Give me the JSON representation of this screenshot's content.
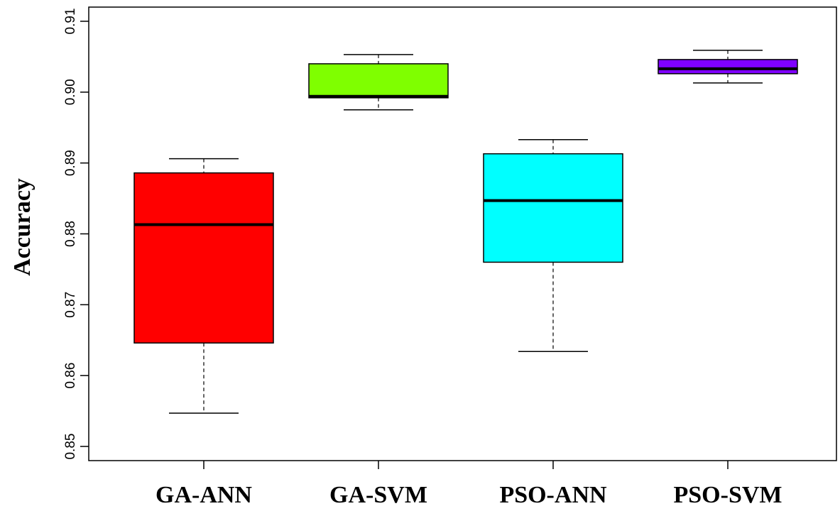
{
  "chart_data": {
    "type": "boxplot",
    "title": "",
    "xlabel": "",
    "ylabel": "Accuracy",
    "ylim": [
      0.848,
      0.912
    ],
    "yticks": [
      "0.85",
      "0.86",
      "0.87",
      "0.88",
      "0.89",
      "0.90",
      "0.91"
    ],
    "grid": false,
    "categories": [
      "GA-ANN",
      "GA-SVM",
      "PSO-ANN",
      "PSO-SVM"
    ],
    "boxes": [
      {
        "category": "GA-ANN",
        "min": 0.8547,
        "q1": 0.8646,
        "median": 0.8813,
        "q3": 0.8886,
        "max": 0.8906,
        "color": "#ff0000"
      },
      {
        "category": "GA-SVM",
        "min": 0.8975,
        "q1": 0.8992,
        "median": 0.8994,
        "q3": 0.904,
        "max": 0.9053,
        "color": "#7fff00"
      },
      {
        "category": "PSO-ANN",
        "min": 0.8634,
        "q1": 0.876,
        "median": 0.8847,
        "q3": 0.8913,
        "max": 0.8933,
        "color": "#00ffff"
      },
      {
        "category": "PSO-SVM",
        "min": 0.9013,
        "q1": 0.9026,
        "median": 0.9033,
        "q3": 0.9046,
        "max": 0.9059,
        "color": "#7f00ff"
      }
    ]
  }
}
